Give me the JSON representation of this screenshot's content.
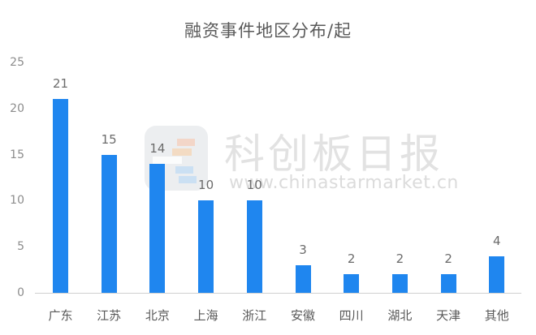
{
  "chart_data": {
    "type": "bar",
    "title": "融资事件地区分布/起",
    "categories": [
      "广东",
      "江苏",
      "北京",
      "上海",
      "浙江",
      "安徽",
      "四川",
      "湖北",
      "天津",
      "其他"
    ],
    "values": [
      21,
      15,
      14,
      10,
      10,
      3,
      2,
      2,
      2,
      4
    ],
    "xlabel": "",
    "ylabel": "",
    "ylim": [
      0,
      25
    ],
    "yticks": [
      0,
      5,
      10,
      15,
      20,
      25
    ],
    "grid": false,
    "legend": null,
    "bar_color": "#1f86ef",
    "data_labels": true
  },
  "watermark": {
    "text": "科创板日报",
    "url": "www.chinastarmarket.cn"
  },
  "yticks_text": [
    "0",
    "5",
    "10",
    "15",
    "20",
    "25"
  ]
}
